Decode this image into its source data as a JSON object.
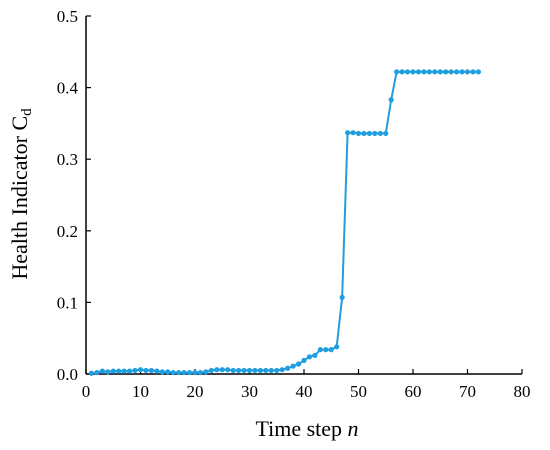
{
  "chart_data": {
    "type": "line",
    "xlabel": "Time step",
    "xlabel_var": "n",
    "ylabel": "Health Indicator C",
    "ylabel_sub": "d",
    "xlim": [
      0,
      80
    ],
    "ylim": [
      0,
      0.5
    ],
    "xticks": [
      "0",
      "10",
      "20",
      "30",
      "40",
      "50",
      "60",
      "70",
      "80"
    ],
    "yticks": [
      "0.0",
      "0.1",
      "0.2",
      "0.3",
      "0.4",
      "0.5"
    ],
    "grid": false,
    "line_color": "#1f9ee0",
    "series": [
      {
        "x": [
          1,
          2,
          3,
          4,
          5,
          6,
          7,
          8,
          9,
          10,
          11,
          12,
          13,
          14,
          15,
          16,
          17,
          18,
          19,
          20,
          21,
          22,
          23,
          24,
          25,
          26,
          27,
          28,
          29,
          30,
          31,
          32,
          33,
          34,
          35,
          36,
          37,
          38,
          39,
          40,
          41,
          42,
          43,
          44,
          45,
          46,
          47,
          48,
          49,
          50,
          51,
          52,
          53,
          54,
          55,
          56,
          57,
          58,
          59,
          60,
          61,
          62,
          63,
          64,
          65,
          66,
          67,
          68,
          69,
          70,
          71,
          72
        ],
        "y": [
          0.001,
          0.002,
          0.004,
          0.003,
          0.004,
          0.004,
          0.004,
          0.004,
          0.005,
          0.006,
          0.005,
          0.005,
          0.004,
          0.003,
          0.003,
          0.002,
          0.002,
          0.002,
          0.002,
          0.002,
          0.002,
          0.003,
          0.005,
          0.006,
          0.006,
          0.006,
          0.005,
          0.005,
          0.005,
          0.005,
          0.005,
          0.005,
          0.005,
          0.005,
          0.005,
          0.006,
          0.008,
          0.011,
          0.014,
          0.019,
          0.024,
          0.026,
          0.034,
          0.034,
          0.034,
          0.038,
          0.107,
          0.337,
          0.337,
          0.336,
          0.336,
          0.336,
          0.336,
          0.336,
          0.336,
          0.383,
          0.422,
          0.422,
          0.422,
          0.422,
          0.422,
          0.422,
          0.422,
          0.422,
          0.422,
          0.422,
          0.422,
          0.422,
          0.422,
          0.422,
          0.422,
          0.422
        ]
      }
    ]
  }
}
